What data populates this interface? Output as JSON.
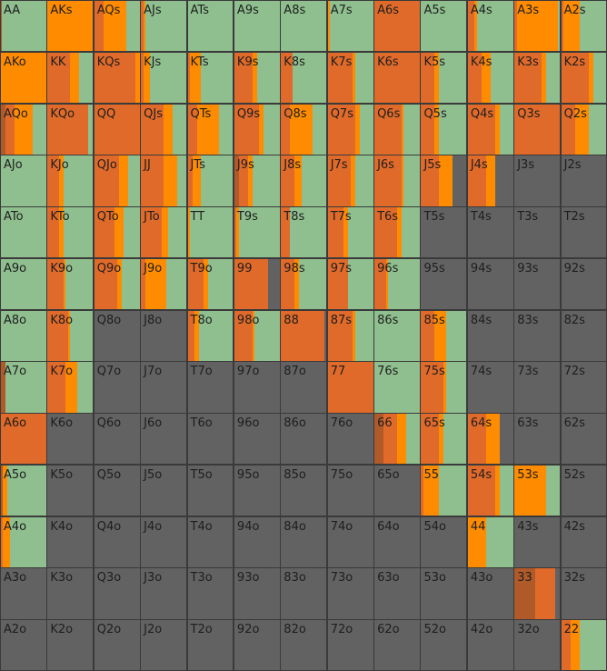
{
  "colors": {
    "fold": "#8fbf8f",
    "call": "#ff8c00",
    "raise": "#e06a2a",
    "allin": "#b05a2a",
    "empty": "#626262"
  },
  "legend_order": [
    "allin",
    "raise",
    "call",
    "fold"
  ],
  "hands": [
    [
      "AA",
      "AKs",
      "AQs",
      "AJs",
      "ATs",
      "A9s",
      "A8s",
      "A7s",
      "A6s",
      "A5s",
      "A4s",
      "A3s",
      "A2s"
    ],
    [
      "AKo",
      "KK",
      "KQs",
      "KJs",
      "KTs",
      "K9s",
      "K8s",
      "K7s",
      "K6s",
      "K5s",
      "K4s",
      "K3s",
      "K2s"
    ],
    [
      "AQo",
      "KQo",
      "QQ",
      "QJs",
      "QTs",
      "Q9s",
      "Q8s",
      "Q7s",
      "Q6s",
      "Q5s",
      "Q4s",
      "Q3s",
      "Q2s"
    ],
    [
      "AJo",
      "KJo",
      "QJo",
      "JJ",
      "JTs",
      "J9s",
      "J8s",
      "J7s",
      "J6s",
      "J5s",
      "J4s",
      "J3s",
      "J2s"
    ],
    [
      "ATo",
      "KTo",
      "QTo",
      "JTo",
      "TT",
      "T9s",
      "T8s",
      "T7s",
      "T6s",
      "T5s",
      "T4s",
      "T3s",
      "T2s"
    ],
    [
      "A9o",
      "K9o",
      "Q9o",
      "J9o",
      "T9o",
      "99",
      "98s",
      "97s",
      "96s",
      "95s",
      "94s",
      "93s",
      "92s"
    ],
    [
      "A8o",
      "K8o",
      "Q8o",
      "J8o",
      "T8o",
      "98o",
      "88",
      "87s",
      "86s",
      "85s",
      "84s",
      "83s",
      "82s"
    ],
    [
      "A7o",
      "K7o",
      "Q7o",
      "J7o",
      "T7o",
      "97o",
      "87o",
      "77",
      "76s",
      "75s",
      "74s",
      "73s",
      "72s"
    ],
    [
      "A6o",
      "K6o",
      "Q6o",
      "J6o",
      "T6o",
      "96o",
      "86o",
      "76o",
      "66",
      "65s",
      "64s",
      "63s",
      "62s"
    ],
    [
      "A5o",
      "K5o",
      "Q5o",
      "J5o",
      "T5o",
      "95o",
      "85o",
      "75o",
      "65o",
      "55",
      "54s",
      "53s",
      "52s"
    ],
    [
      "A4o",
      "K4o",
      "Q4o",
      "J4o",
      "T4o",
      "94o",
      "84o",
      "74o",
      "64o",
      "54o",
      "44",
      "43s",
      "42s"
    ],
    [
      "A3o",
      "K3o",
      "Q3o",
      "J3o",
      "T3o",
      "93o",
      "83o",
      "73o",
      "63o",
      "53o",
      "43o",
      "33",
      "32s"
    ],
    [
      "A2o",
      "K2o",
      "Q2o",
      "J2o",
      "T2o",
      "92o",
      "82o",
      "72o",
      "62o",
      "52o",
      "42o",
      "32o",
      "22"
    ]
  ],
  "freqs": [
    [
      [
        0.02,
        0,
        0,
        0.98
      ],
      [
        0,
        0,
        1,
        0
      ],
      [
        0,
        0.2,
        0.5,
        0.3
      ],
      [
        0,
        0.05,
        0.05,
        0.9
      ],
      [
        0,
        0,
        0,
        1
      ],
      [
        0,
        0,
        0,
        1
      ],
      [
        0,
        0,
        0,
        1
      ],
      [
        0,
        0,
        0.05,
        0.95
      ],
      [
        0,
        1,
        0,
        0
      ],
      [
        0,
        0,
        0,
        1
      ],
      [
        0,
        0.15,
        0.05,
        0.8
      ],
      [
        0,
        0.05,
        0.9,
        0.05
      ],
      [
        0,
        0.05,
        0.35,
        0.6
      ]
    ],
    [
      [
        0,
        0,
        1,
        0
      ],
      [
        0,
        0.5,
        0.2,
        0.3
      ],
      [
        0,
        0.9,
        0.1,
        0
      ],
      [
        0,
        0.05,
        0.15,
        0.8
      ],
      [
        0,
        0.05,
        0.25,
        0.7
      ],
      [
        0,
        0.4,
        0.1,
        0.5
      ],
      [
        0,
        0.25,
        0,
        0.75
      ],
      [
        0,
        0.55,
        0.05,
        0.4
      ],
      [
        0,
        1,
        0,
        0
      ],
      [
        0,
        0.3,
        0.1,
        0.6
      ],
      [
        0,
        0.3,
        0.2,
        0.5
      ],
      [
        0,
        0.6,
        0.1,
        0.3
      ],
      [
        0,
        0.6,
        0.1,
        0.3
      ]
    ],
    [
      [
        0.1,
        0.2,
        0.4,
        0.3
      ],
      [
        0,
        0.9,
        0,
        0.1
      ],
      [
        0,
        1,
        0,
        0
      ],
      [
        0,
        0.5,
        0.2,
        0.3
      ],
      [
        0,
        0.2,
        0.5,
        0.3
      ],
      [
        0,
        0.55,
        0.1,
        0.35
      ],
      [
        0,
        0.2,
        0.5,
        0.3
      ],
      [
        0,
        0.6,
        0.1,
        0.3
      ],
      [
        0,
        0.6,
        0.05,
        0.35
      ],
      [
        0,
        0.3,
        0.1,
        0.6
      ],
      [
        0,
        0.6,
        0.1,
        0.3
      ],
      [
        0,
        1,
        0,
        0
      ],
      [
        0,
        0.3,
        0.3,
        0.4
      ]
    ],
    [
      [
        0,
        0,
        0,
        1
      ],
      [
        0,
        0.25,
        0.1,
        0.65
      ],
      [
        0,
        0.55,
        0.2,
        0.25
      ],
      [
        0,
        0.5,
        0.3,
        0.2
      ],
      [
        0,
        0.1,
        0.2,
        0.7
      ],
      [
        0.1,
        0.2,
        0.1,
        0.6
      ],
      [
        0,
        0.3,
        0.15,
        0.55
      ],
      [
        0,
        0.5,
        0.1,
        0.4
      ],
      [
        0,
        0.6,
        0.05,
        0.35
      ],
      [
        0,
        0.4,
        0.3,
        0
      ],
      [
        0,
        0.4,
        0.2,
        0
      ],
      [
        0,
        0,
        0,
        0
      ],
      [
        0,
        0,
        0,
        0
      ]
    ],
    [
      [
        0,
        0,
        0,
        1
      ],
      [
        0,
        0.25,
        0.1,
        0.65
      ],
      [
        0,
        0.45,
        0.2,
        0.35
      ],
      [
        0,
        0.45,
        0.15,
        0.4
      ],
      [
        0,
        0,
        0.05,
        0.95
      ],
      [
        0,
        0.05,
        0.05,
        0.9
      ],
      [
        0,
        0.2,
        0,
        0.8
      ],
      [
        0,
        0.35,
        0.1,
        0.55
      ],
      [
        0,
        0.5,
        0.1,
        0.4
      ],
      [
        0,
        0,
        0,
        0
      ],
      [
        0,
        0,
        0,
        0
      ],
      [
        0,
        0,
        0,
        0
      ],
      [
        0,
        0,
        0,
        0
      ]
    ],
    [
      [
        0,
        0,
        0,
        1
      ],
      [
        0,
        0.35,
        0.05,
        0.6
      ],
      [
        0,
        0.5,
        0.1,
        0.4
      ],
      [
        0,
        0.1,
        0.45,
        0.45
      ],
      [
        0,
        0.35,
        0.1,
        0.55
      ],
      [
        0,
        0.75,
        0,
        0
      ],
      [
        0,
        0.3,
        0.1,
        0.6
      ],
      [
        0,
        0.45,
        0,
        0.55
      ],
      [
        0,
        0.25,
        0.05,
        0.7
      ],
      [
        0,
        0,
        0,
        0
      ],
      [
        0,
        0,
        0,
        0
      ],
      [
        0,
        0,
        0,
        0
      ],
      [
        0,
        0,
        0,
        0
      ]
    ],
    [
      [
        0,
        0,
        0,
        1
      ],
      [
        0,
        0.45,
        0.05,
        0.5
      ],
      [
        0,
        0,
        0,
        0
      ],
      [
        0,
        0,
        0,
        0
      ],
      [
        0,
        0.15,
        0.1,
        0.75
      ],
      [
        0,
        0.4,
        0.05,
        0.55
      ],
      [
        0,
        0.95,
        0,
        0
      ],
      [
        0,
        0.55,
        0.05,
        0.4
      ],
      [
        0,
        0,
        0,
        1
      ],
      [
        0,
        0.3,
        0.25,
        0.45
      ],
      [
        0,
        0,
        0,
        0
      ],
      [
        0,
        0,
        0,
        0
      ],
      [
        0,
        0,
        0,
        0
      ]
    ],
    [
      [
        0.1,
        0,
        0,
        0.9
      ],
      [
        0,
        0.4,
        0.25,
        0.35
      ],
      [
        0,
        0,
        0,
        0
      ],
      [
        0,
        0,
        0,
        0
      ],
      [
        0,
        0,
        0,
        0
      ],
      [
        0,
        0,
        0,
        0
      ],
      [
        0,
        0,
        0,
        0
      ],
      [
        0,
        1,
        0,
        0
      ],
      [
        0,
        0,
        0,
        1
      ],
      [
        0,
        0.5,
        0.05,
        0.45
      ],
      [
        0,
        0,
        0,
        0
      ],
      [
        0,
        0,
        0,
        0
      ],
      [
        0,
        0,
        0,
        0
      ]
    ],
    [
      [
        0,
        1,
        0,
        0
      ],
      [
        0,
        0,
        0,
        0
      ],
      [
        0,
        0,
        0,
        0
      ],
      [
        0,
        0,
        0,
        0
      ],
      [
        0,
        0,
        0,
        0
      ],
      [
        0,
        0,
        0,
        0
      ],
      [
        0,
        0,
        0,
        0
      ],
      [
        0,
        0,
        0,
        0
      ],
      [
        0.2,
        0.3,
        0.2,
        0.3
      ],
      [
        0,
        0.4,
        0.1,
        0.5
      ],
      [
        0,
        0.4,
        0.3,
        0
      ],
      [
        0,
        0,
        0,
        0
      ],
      [
        0,
        0,
        0,
        0
      ]
    ],
    [
      [
        0.05,
        0,
        0.1,
        0.85
      ],
      [
        0,
        0,
        0,
        0
      ],
      [
        0,
        0,
        0,
        0
      ],
      [
        0,
        0,
        0,
        0
      ],
      [
        0,
        0,
        0,
        0
      ],
      [
        0,
        0,
        0,
        0
      ],
      [
        0,
        0,
        0,
        0
      ],
      [
        0,
        0,
        0,
        0
      ],
      [
        0,
        0,
        0,
        0
      ],
      [
        0,
        0.05,
        0.35,
        0.6
      ],
      [
        0,
        0.6,
        0.1,
        0.3
      ],
      [
        0,
        0,
        0.7,
        0.3
      ],
      [
        0,
        0,
        0,
        0
      ]
    ],
    [
      [
        0,
        0.05,
        0.15,
        0.8
      ],
      [
        0,
        0,
        0,
        0
      ],
      [
        0,
        0,
        0,
        0
      ],
      [
        0,
        0,
        0,
        0
      ],
      [
        0,
        0,
        0,
        0
      ],
      [
        0,
        0,
        0,
        0
      ],
      [
        0,
        0,
        0,
        0
      ],
      [
        0,
        0,
        0,
        0
      ],
      [
        0,
        0,
        0,
        0
      ],
      [
        0,
        0,
        0,
        0
      ],
      [
        0,
        0,
        0.4,
        0.6
      ],
      [
        0,
        0,
        0,
        0
      ],
      [
        0,
        0,
        0,
        0
      ]
    ],
    [
      [
        0,
        0,
        0,
        0
      ],
      [
        0,
        0,
        0,
        0
      ],
      [
        0,
        0,
        0,
        0
      ],
      [
        0,
        0,
        0,
        0
      ],
      [
        0,
        0,
        0,
        0
      ],
      [
        0,
        0,
        0,
        0
      ],
      [
        0,
        0,
        0,
        0
      ],
      [
        0,
        0,
        0,
        0
      ],
      [
        0,
        0,
        0,
        0
      ],
      [
        0,
        0,
        0,
        0
      ],
      [
        0,
        0,
        0,
        0
      ],
      [
        0.45,
        0.45,
        0,
        0
      ],
      [
        0,
        0,
        0,
        0
      ]
    ],
    [
      [
        0,
        0,
        0,
        0
      ],
      [
        0,
        0,
        0,
        0
      ],
      [
        0,
        0,
        0,
        0
      ],
      [
        0,
        0,
        0,
        0
      ],
      [
        0,
        0,
        0,
        0
      ],
      [
        0,
        0,
        0,
        0
      ],
      [
        0,
        0,
        0,
        0
      ],
      [
        0,
        0,
        0,
        0
      ],
      [
        0,
        0,
        0,
        0
      ],
      [
        0,
        0,
        0,
        0
      ],
      [
        0,
        0,
        0,
        0
      ],
      [
        0,
        0,
        0,
        0
      ],
      [
        0,
        0.2,
        0.2,
        0.6
      ]
    ]
  ]
}
